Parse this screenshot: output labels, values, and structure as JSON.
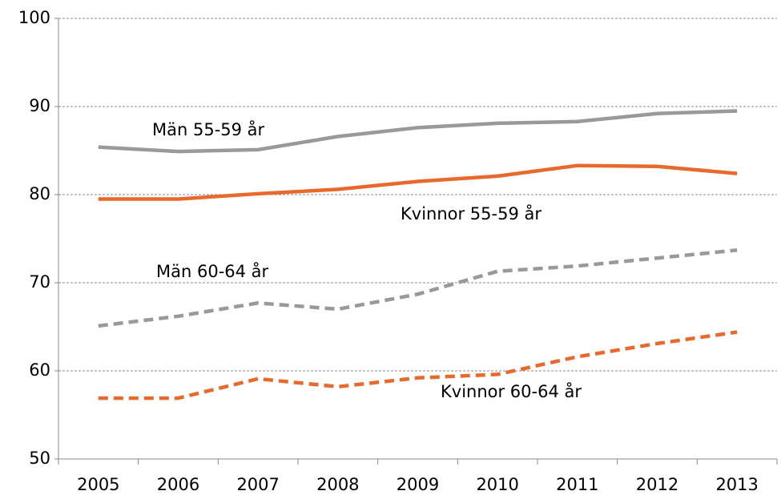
{
  "chart_data": {
    "type": "line",
    "categories": [
      "2005",
      "2006",
      "2007",
      "2008",
      "2009",
      "2010",
      "2011",
      "2012",
      "2013"
    ],
    "series": [
      {
        "name": "Män 55-59 år",
        "color": "#999999",
        "dashed": false,
        "values": [
          85.4,
          84.9,
          85.1,
          86.6,
          87.6,
          88.1,
          88.3,
          89.2,
          89.5
        ]
      },
      {
        "name": "Kvinnor  55-59 år",
        "color": "#e8692c",
        "dashed": false,
        "values": [
          79.5,
          79.5,
          80.1,
          80.6,
          81.5,
          82.1,
          83.3,
          83.2,
          82.4
        ]
      },
      {
        "name": "Män 60-64 år",
        "color": "#999999",
        "dashed": true,
        "values": [
          65.1,
          66.2,
          67.7,
          67.0,
          68.7,
          71.3,
          71.9,
          72.8,
          73.7
        ]
      },
      {
        "name": "Kvinnor 60-64 år",
        "color": "#e8692c",
        "dashed": true,
        "values": [
          56.9,
          56.9,
          59.1,
          58.2,
          59.2,
          59.6,
          61.6,
          63.1,
          64.4
        ]
      }
    ],
    "ylim": [
      50,
      100
    ],
    "yticks": [
      50,
      60,
      70,
      80,
      90,
      100
    ],
    "grid": true
  }
}
